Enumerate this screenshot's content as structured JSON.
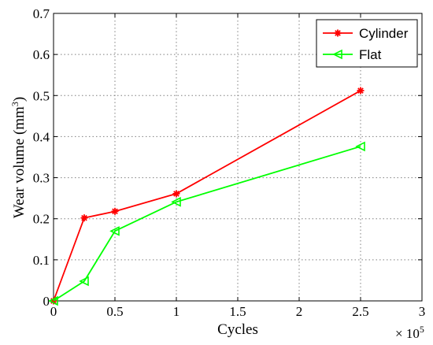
{
  "chart_data": {
    "type": "line",
    "xlabel": "Cycles",
    "ylabel": "Wear volume (mm",
    "ylabel_superscript": "3",
    "ylabel_suffix": ")",
    "x_exponent_base": "× 10",
    "x_exponent_power": "5",
    "xlim": [
      0,
      3
    ],
    "ylim": [
      0,
      0.7
    ],
    "xticks": [
      "0",
      "0.5",
      "1",
      "1.5",
      "2",
      "2.5",
      "3"
    ],
    "yticks": [
      "0",
      "0.1",
      "0.2",
      "0.3",
      "0.4",
      "0.5",
      "0.6",
      "0.7"
    ],
    "grid": true,
    "legend_position": "top-right",
    "series": [
      {
        "name": "Cylinder",
        "color": "#ff0000",
        "marker": "star",
        "x": [
          0,
          0.25,
          0.5,
          1.0,
          2.5
        ],
        "y": [
          0,
          0.202,
          0.218,
          0.261,
          0.512
        ]
      },
      {
        "name": "Flat",
        "color": "#00ff00",
        "marker": "triangle-left",
        "x": [
          0,
          0.25,
          0.5,
          1.0,
          2.5
        ],
        "y": [
          0,
          0.048,
          0.17,
          0.241,
          0.376
        ]
      }
    ]
  }
}
